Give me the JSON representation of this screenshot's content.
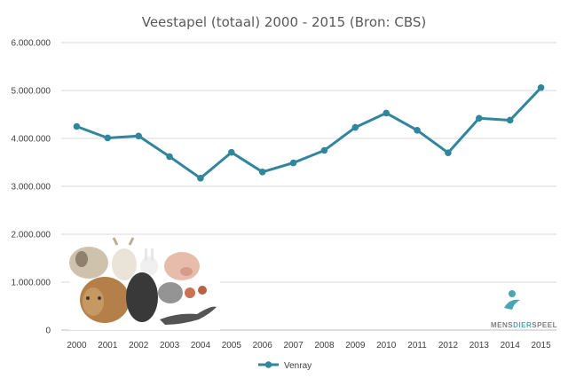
{
  "chart_data": {
    "type": "line",
    "title": "Veestapel (totaal) 2000 - 2015 (Bron: CBS)",
    "xlabel": "",
    "ylabel": "",
    "categories": [
      "2000",
      "2001",
      "2002",
      "2003",
      "2004",
      "2005",
      "2006",
      "2007",
      "2008",
      "2009",
      "2010",
      "2011",
      "2012",
      "2013",
      "2014",
      "2015"
    ],
    "series": [
      {
        "name": "Venray",
        "color": "#31859c",
        "values": [
          4250000,
          4010000,
          4050000,
          3620000,
          3170000,
          3710000,
          3300000,
          3490000,
          3750000,
          4230000,
          4530000,
          4170000,
          3700000,
          4420000,
          4380000,
          5060000
        ]
      }
    ],
    "ylim": [
      0,
      6000000
    ],
    "yticks": [
      0,
      1000000,
      2000000,
      3000000,
      4000000,
      5000000,
      6000000
    ],
    "ytick_labels": [
      "0",
      "1.000.000",
      "2.000.000",
      "3.000.000",
      "4.000.000",
      "5.000.000",
      "6.000.000"
    ],
    "grid": true,
    "legend_position": "bottom"
  },
  "logo": {
    "text_left": "MENS",
    "text_mid": "DIER",
    "text_right": "SPEEL",
    "brand_color": "#4aa5b5",
    "text_color": "#7f7f7f"
  },
  "decor": {
    "animals_icon": "farm-animals-collage"
  }
}
